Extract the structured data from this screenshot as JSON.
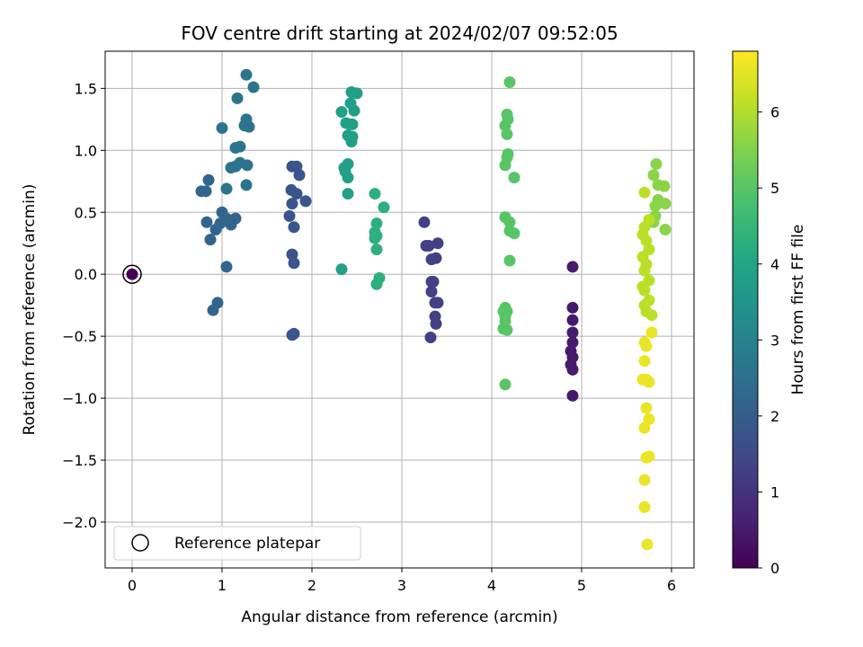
{
  "chart_data": {
    "type": "scatter",
    "title": "FOV centre drift starting at 2024/02/07 09:52:05",
    "xlabel": "Angular distance from reference (arcmin)",
    "ylabel": "Rotation from reference (arcmin)",
    "xlim": [
      -0.3,
      6.25
    ],
    "ylim": [
      -2.37,
      1.8
    ],
    "xticks": [
      0,
      1,
      2,
      3,
      4,
      5,
      6
    ],
    "yticks": [
      -2.0,
      -1.5,
      -1.0,
      -0.5,
      0.0,
      0.5,
      1.0,
      1.5
    ],
    "grid": true,
    "colormap": "viridis",
    "colorbar": {
      "label": "Hours from first FF file",
      "range": [
        0,
        6.8
      ],
      "ticks": [
        0,
        1,
        2,
        3,
        4,
        5,
        6
      ]
    },
    "legend": {
      "placement": "lower-left",
      "entries": [
        "Reference platepar"
      ]
    },
    "reference_point": {
      "x": 0,
      "y": 0
    },
    "series": [
      {
        "group": "t0.5",
        "points": [
          [
            4.9,
            0.06
          ],
          [
            4.9,
            -0.27
          ],
          [
            4.9,
            -0.37
          ],
          [
            4.9,
            -0.47
          ],
          [
            4.9,
            -0.55
          ],
          [
            4.88,
            -0.62
          ],
          [
            4.9,
            -0.67
          ],
          [
            4.88,
            -0.73
          ],
          [
            4.9,
            -0.77
          ],
          [
            4.9,
            -0.98
          ]
        ]
      },
      {
        "group": "t1.3",
        "points": [
          [
            3.25,
            0.42
          ],
          [
            3.27,
            0.23
          ],
          [
            3.3,
            0.23
          ],
          [
            3.4,
            0.25
          ],
          [
            3.33,
            0.12
          ],
          [
            3.38,
            0.13
          ],
          [
            3.33,
            -0.06
          ],
          [
            3.35,
            -0.06
          ],
          [
            3.33,
            -0.14
          ],
          [
            3.37,
            -0.23
          ],
          [
            3.4,
            -0.23
          ],
          [
            3.37,
            -0.34
          ],
          [
            3.38,
            -0.4
          ],
          [
            3.32,
            -0.51
          ]
        ]
      },
      {
        "group": "t1.8",
        "points": [
          [
            1.78,
            0.87
          ],
          [
            1.83,
            0.87
          ],
          [
            1.86,
            0.8
          ],
          [
            1.77,
            0.68
          ],
          [
            1.83,
            0.65
          ],
          [
            1.93,
            0.59
          ],
          [
            1.78,
            0.57
          ],
          [
            1.75,
            0.47
          ],
          [
            1.8,
            0.38
          ],
          [
            1.78,
            0.16
          ],
          [
            1.8,
            0.09
          ],
          [
            1.78,
            -0.49
          ],
          [
            1.8,
            -0.48
          ]
        ]
      },
      {
        "group": "t2.2",
        "points": [
          [
            0.77,
            0.67
          ],
          [
            0.82,
            0.67
          ],
          [
            0.85,
            0.76
          ],
          [
            0.83,
            0.42
          ],
          [
            0.93,
            0.36
          ],
          [
            0.98,
            0.41
          ],
          [
            0.87,
            0.28
          ],
          [
            1.1,
            0.4
          ],
          [
            1.05,
            0.45
          ],
          [
            1.15,
            0.45
          ],
          [
            0.9,
            -0.29
          ],
          [
            0.95,
            -0.23
          ],
          [
            1.05,
            0.06
          ],
          [
            1.0,
            0.5
          ]
        ]
      },
      {
        "group": "t2.6",
        "points": [
          [
            1.0,
            1.18
          ],
          [
            1.05,
            0.69
          ],
          [
            1.1,
            0.86
          ],
          [
            1.15,
            0.87
          ],
          [
            1.2,
            0.9
          ],
          [
            1.2,
            1.03
          ],
          [
            1.15,
            1.02
          ],
          [
            1.28,
            0.88
          ],
          [
            1.27,
            0.72
          ],
          [
            1.17,
            1.42
          ],
          [
            1.27,
            1.61
          ],
          [
            1.35,
            1.51
          ],
          [
            1.27,
            1.25
          ],
          [
            1.25,
            1.2
          ],
          [
            1.3,
            1.19
          ]
        ]
      },
      {
        "group": "t3.8",
        "points": [
          [
            2.33,
            1.31
          ],
          [
            2.38,
            1.22
          ],
          [
            2.44,
            1.47
          ],
          [
            2.5,
            1.46
          ],
          [
            2.43,
            1.38
          ],
          [
            2.47,
            1.32
          ],
          [
            2.42,
            1.21
          ],
          [
            2.45,
            1.21
          ],
          [
            2.4,
            1.12
          ],
          [
            2.45,
            1.11
          ],
          [
            2.44,
            1.07
          ],
          [
            2.36,
            0.86
          ],
          [
            2.4,
            0.89
          ],
          [
            2.37,
            0.83
          ],
          [
            2.4,
            0.78
          ],
          [
            2.4,
            0.65
          ],
          [
            2.33,
            0.04
          ]
        ]
      },
      {
        "group": "t4.3",
        "points": [
          [
            2.7,
            0.65
          ],
          [
            2.8,
            0.54
          ],
          [
            2.72,
            0.41
          ],
          [
            2.7,
            0.34
          ],
          [
            2.72,
            0.31
          ],
          [
            2.7,
            0.29
          ],
          [
            2.72,
            0.2
          ],
          [
            2.75,
            -0.03
          ],
          [
            2.72,
            -0.08
          ]
        ]
      },
      {
        "group": "t5.0",
        "points": [
          [
            4.2,
            1.55
          ],
          [
            4.17,
            1.29
          ],
          [
            4.18,
            1.25
          ],
          [
            4.15,
            1.2
          ],
          [
            4.17,
            1.13
          ],
          [
            4.18,
            0.97
          ],
          [
            4.17,
            0.94
          ],
          [
            4.15,
            0.88
          ],
          [
            4.25,
            0.78
          ],
          [
            4.15,
            0.46
          ],
          [
            4.2,
            0.42
          ],
          [
            4.2,
            0.35
          ],
          [
            4.25,
            0.33
          ],
          [
            4.2,
            0.11
          ],
          [
            4.15,
            -0.27
          ],
          [
            4.13,
            -0.3
          ],
          [
            4.17,
            -0.3
          ],
          [
            4.15,
            -0.34
          ],
          [
            4.15,
            -0.38
          ],
          [
            4.13,
            -0.44
          ],
          [
            4.17,
            -0.45
          ],
          [
            4.15,
            -0.89
          ]
        ]
      },
      {
        "group": "t5.6",
        "points": [
          [
            5.83,
            0.89
          ],
          [
            5.8,
            0.8
          ],
          [
            5.85,
            0.72
          ],
          [
            5.92,
            0.71
          ],
          [
            5.85,
            0.6
          ],
          [
            5.93,
            0.57
          ],
          [
            5.82,
            0.55
          ],
          [
            5.82,
            0.47
          ],
          [
            5.8,
            0.42
          ],
          [
            5.93,
            0.36
          ]
        ]
      },
      {
        "group": "t6.1",
        "points": [
          [
            5.7,
            0.66
          ],
          [
            5.75,
            0.44
          ],
          [
            5.7,
            0.38
          ],
          [
            5.68,
            0.32
          ],
          [
            5.72,
            0.27
          ],
          [
            5.75,
            0.2
          ],
          [
            5.68,
            0.14
          ],
          [
            5.72,
            0.08
          ],
          [
            5.7,
            0.03
          ],
          [
            5.75,
            -0.05
          ],
          [
            5.68,
            -0.1
          ],
          [
            5.7,
            -0.13
          ],
          [
            5.75,
            -0.21
          ],
          [
            5.7,
            -0.25
          ],
          [
            5.72,
            -0.3
          ],
          [
            5.78,
            -0.33
          ]
        ]
      },
      {
        "group": "t6.6",
        "points": [
          [
            5.7,
            -0.55
          ],
          [
            5.72,
            -0.58
          ],
          [
            5.7,
            -0.7
          ],
          [
            5.75,
            -0.87
          ],
          [
            5.68,
            -0.85
          ],
          [
            5.72,
            -0.85
          ],
          [
            5.78,
            -0.47
          ],
          [
            5.72,
            -1.08
          ],
          [
            5.75,
            -1.17
          ],
          [
            5.7,
            -1.24
          ],
          [
            5.75,
            -1.47
          ],
          [
            5.72,
            -1.48
          ],
          [
            5.7,
            -1.66
          ],
          [
            5.7,
            -1.88
          ],
          [
            5.73,
            -2.18
          ]
        ]
      }
    ]
  }
}
